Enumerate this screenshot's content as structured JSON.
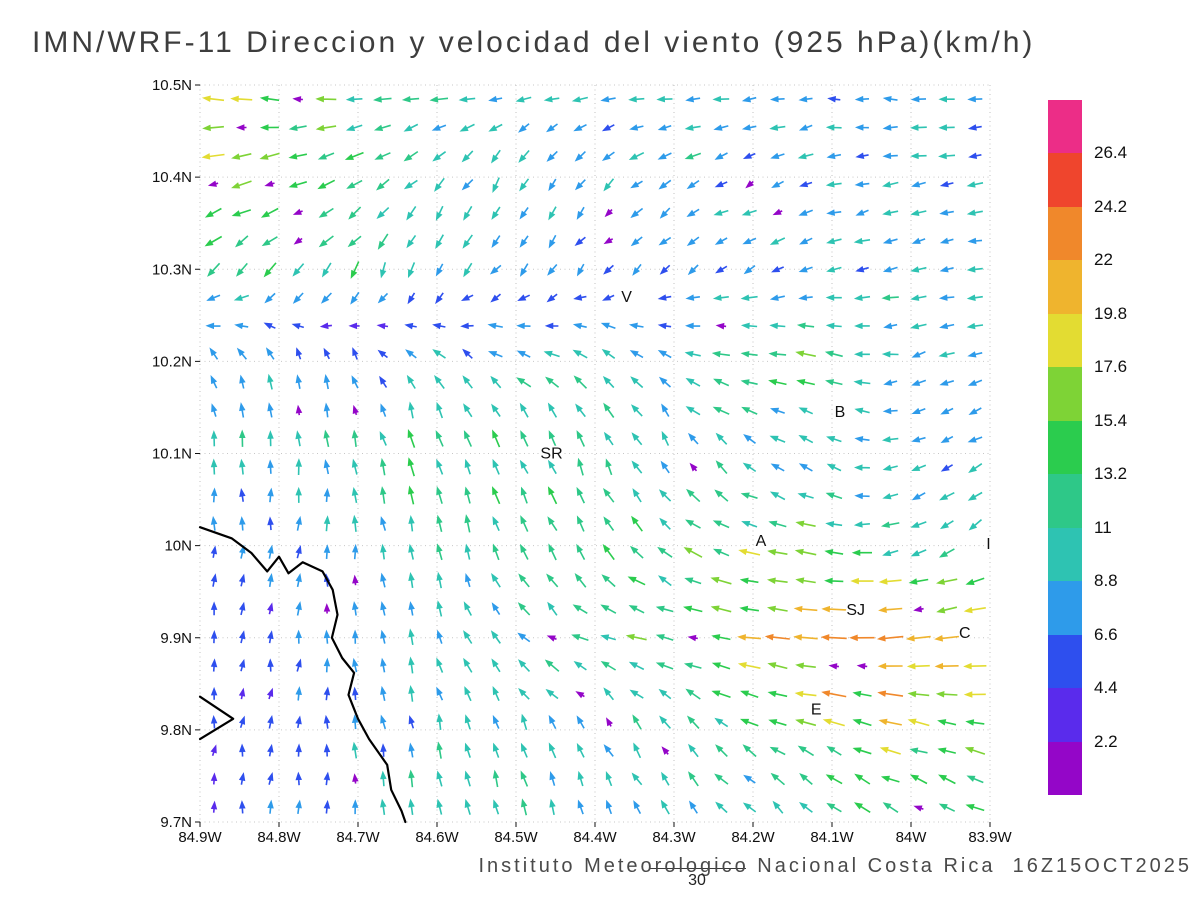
{
  "title": "IMN/WRF-11 Direccion y velocidad del viento (925 hPa)(km/h)",
  "footer": {
    "text": "Instituto Meteorologico Nacional Costa Rica  16Z15OCT2025",
    "sub_label": "30"
  },
  "chart_data": {
    "type": "vector-field",
    "title": "IMN/WRF-11 Direccion y velocidad del viento (925 hPa)(km/h)",
    "units": "km/h",
    "level": "925 hPa",
    "x_ticks": [
      "84.9W",
      "84.8W",
      "84.7W",
      "84.6W",
      "84.5W",
      "84.4W",
      "84.3W",
      "84.2W",
      "84.1W",
      "84W",
      "83.9W"
    ],
    "x_tick_values": [
      84.9,
      84.8,
      84.7,
      84.6,
      84.5,
      84.4,
      84.3,
      84.2,
      84.1,
      84.0,
      83.9
    ],
    "y_ticks": [
      "10.5N",
      "10.4N",
      "10.3N",
      "10.2N",
      "10.1N",
      "10N",
      "9.9N",
      "9.8N",
      "9.7N"
    ],
    "y_tick_values": [
      10.5,
      10.4,
      10.3,
      10.2,
      10.1,
      10.0,
      9.9,
      9.8,
      9.7
    ],
    "x_domain": [
      84.9,
      83.9
    ],
    "y_domain": [
      9.7,
      10.5
    ],
    "grid_step": 0.1,
    "colorbar": {
      "levels": [
        "2.2",
        "4.4",
        "6.6",
        "8.8",
        "11",
        "13.2",
        "15.4",
        "17.6",
        "19.8",
        "22",
        "24.2",
        "26.4"
      ],
      "level_values": [
        2.2,
        4.4,
        6.6,
        8.8,
        11,
        13.2,
        15.4,
        17.6,
        19.8,
        22,
        24.2,
        26.4
      ],
      "colors": [
        "#9406C8",
        "#5A2BEC",
        "#2E4FEE",
        "#2E9BEA",
        "#2EC3B2",
        "#2EC888",
        "#2BCC4E",
        "#7ED336",
        "#E3DC32",
        "#EFB42E",
        "#F0882B",
        "#EF452D",
        "#EC2D87"
      ]
    },
    "stations": [
      {
        "label": "V",
        "lon": 84.36,
        "lat": 10.27
      },
      {
        "label": "B",
        "lon": 84.09,
        "lat": 10.145
      },
      {
        "label": "SR",
        "lon": 84.455,
        "lat": 10.1
      },
      {
        "label": "A",
        "lon": 84.19,
        "lat": 10.005
      },
      {
        "label": "SJ",
        "lon": 84.07,
        "lat": 9.93
      },
      {
        "label": "C",
        "lon": 83.932,
        "lat": 9.905
      },
      {
        "label": "E",
        "lon": 84.12,
        "lat": 9.822
      },
      {
        "label": "I",
        "lon": 83.902,
        "lat": 10.002
      }
    ],
    "coastline": [
      [
        84.9,
        10.02
      ],
      [
        84.86,
        10.008
      ],
      [
        84.835,
        9.992
      ],
      [
        84.815,
        9.972
      ],
      [
        84.8,
        9.988
      ],
      [
        84.788,
        9.97
      ],
      [
        84.77,
        9.982
      ],
      [
        84.745,
        9.972
      ],
      [
        84.732,
        9.952
      ],
      [
        84.726,
        9.925
      ],
      [
        84.733,
        9.9
      ],
      [
        84.72,
        9.878
      ],
      [
        84.705,
        9.862
      ],
      [
        84.712,
        9.838
      ],
      [
        84.7,
        9.812
      ],
      [
        84.686,
        9.79
      ],
      [
        84.663,
        9.762
      ],
      [
        84.658,
        9.735
      ],
      [
        84.645,
        9.712
      ],
      [
        84.64,
        9.7
      ]
    ],
    "peninsula": [
      [
        84.9,
        9.836
      ],
      [
        84.858,
        9.812
      ],
      [
        84.9,
        9.79
      ]
    ],
    "wind_grid": {
      "cols_lon": [
        84.9,
        84.8,
        84.7,
        84.6,
        84.5,
        84.4,
        84.3,
        84.2,
        84.1,
        84.0,
        83.9
      ],
      "rows_lat": [
        10.5,
        10.4,
        10.3,
        10.2,
        10.1,
        10.0,
        9.9,
        9.8,
        9.7
      ],
      "u": [
        [
          -17,
          -18,
          -14,
          -11,
          -10,
          -9,
          -9,
          -8,
          -7,
          -9,
          -8
        ],
        [
          -16,
          -15,
          -12,
          -6,
          -4,
          -6,
          -8,
          -7,
          -8,
          -9,
          -8
        ],
        [
          -10,
          -8,
          -5,
          -4,
          -5,
          -4,
          -6,
          -7,
          -8,
          -9,
          -9
        ],
        [
          -4,
          -3,
          -2,
          -6,
          -8,
          -9,
          -6,
          -16,
          -13,
          -8,
          -9
        ],
        [
          -1,
          0,
          -2,
          -4,
          -5,
          -4,
          -5,
          -6,
          -7,
          -8,
          -7
        ],
        [
          0,
          1,
          0,
          -2,
          -4,
          -6,
          -10,
          -16,
          -14,
          -10,
          -8
        ],
        [
          0,
          1,
          -1,
          -3,
          -8,
          -12,
          -14,
          -18,
          -24,
          -26,
          -20
        ],
        [
          0,
          1,
          -1,
          -2,
          -3,
          -4,
          -6,
          -10,
          -14,
          -16,
          -14
        ],
        [
          0,
          1,
          -1,
          -2,
          -3,
          -3,
          -5,
          -7,
          -9,
          -12,
          -13
        ]
      ],
      "v": [
        [
          2,
          3,
          0,
          -1,
          0,
          -1,
          0,
          -1,
          0,
          1,
          0
        ],
        [
          -4,
          -5,
          -6,
          -8,
          -9,
          -7,
          -4,
          -3,
          -2,
          -1,
          -2
        ],
        [
          -8,
          -10,
          -10,
          -8,
          -6,
          -5,
          -4,
          -3,
          -2,
          -2,
          -1
        ],
        [
          6,
          8,
          6,
          6,
          5,
          6,
          4,
          2,
          3,
          -2,
          -2
        ],
        [
          9,
          10,
          11,
          12,
          11,
          10,
          8,
          6,
          4,
          -3,
          -5
        ],
        [
          7,
          6,
          8,
          10,
          11,
          12,
          8,
          4,
          2,
          -4,
          -6
        ],
        [
          5,
          5,
          7,
          9,
          6,
          4,
          3,
          2,
          1,
          -2,
          -4
        ],
        [
          4,
          5,
          8,
          9,
          8,
          9,
          8,
          6,
          5,
          4,
          3
        ],
        [
          4,
          5,
          9,
          11,
          10,
          9,
          8,
          7,
          8,
          7,
          6
        ]
      ]
    },
    "arrow_grid": {
      "cols": 28,
      "rows": 26
    }
  }
}
